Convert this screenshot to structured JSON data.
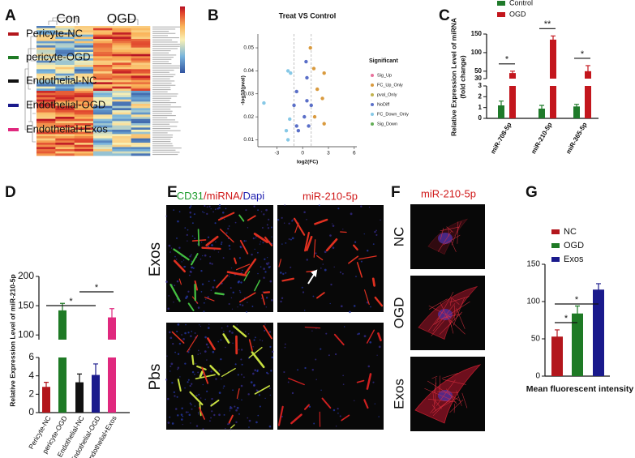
{
  "panel_labels": [
    "A",
    "B",
    "C",
    "D",
    "E",
    "F",
    "G"
  ],
  "chart_data": [
    {
      "type": "heatmap",
      "column_groups": [
        "Con",
        "OGD"
      ]
    },
    {
      "type": "scatter",
      "title": "Treat VS Control",
      "x_label": "log2(FC)",
      "y_label": "-log10(pval)",
      "legend_title": "Significant",
      "xlim": [
        -5.2,
        6.3
      ],
      "ylim": [
        0.007,
        0.056
      ],
      "xticks": [
        -3,
        0,
        3,
        6
      ],
      "yticks": [
        0.01,
        0.02,
        0.03,
        0.04,
        0.05
      ],
      "threshold_lines": [
        -1,
        1
      ],
      "series": [
        {
          "name": "Sig_Up",
          "color": "#e8719c",
          "x": [],
          "values": []
        },
        {
          "name": "FC_Up_Only",
          "color": "#d99a3e",
          "x": [
            0.9,
            1.3,
            2.5,
            1.7,
            2.3,
            1.4,
            2.5
          ],
          "values": [
            0.05,
            0.041,
            0.039,
            0.032,
            0.028,
            0.02,
            0.017
          ]
        },
        {
          "name": "pval_Only",
          "color": "#c2b34f",
          "x": [],
          "values": []
        },
        {
          "name": "NoDiff",
          "color": "#5a6fc8",
          "x": [
            0.4,
            0.5,
            -0.7,
            0.5,
            1.0,
            -1.0,
            0.2,
            -0.7,
            -0.5,
            0.7
          ],
          "values": [
            0.044,
            0.037,
            0.031,
            0.027,
            0.025,
            0.025,
            0.02,
            0.016,
            0.014,
            0.016
          ]
        },
        {
          "name": "FC_Down_Only",
          "color": "#86c8e6",
          "x": [
            -1.7,
            -1.4,
            -4.5,
            -1.5,
            -1.9,
            -1.7
          ],
          "values": [
            0.04,
            0.039,
            0.026,
            0.019,
            0.014,
            0.01
          ]
        },
        {
          "name": "Sig_Down",
          "color": "#62ad55",
          "x": [],
          "values": []
        }
      ]
    },
    {
      "type": "bar",
      "y_label": [
        "Relative Expression Level of miRNA",
        "(fold change)"
      ],
      "categories": [
        "miR-708-5p",
        "miR-210-5p",
        "miR-365-5p"
      ],
      "series": [
        {
          "name": "Control",
          "color": "#1f7a2a",
          "values": [
            1.2,
            0.9,
            1.1
          ],
          "errors": [
            0.4,
            0.3,
            0.2
          ]
        },
        {
          "name": "OGD",
          "color": "#c3161d",
          "values": [
            45,
            135,
            50
          ],
          "errors": [
            5,
            10,
            15
          ]
        }
      ],
      "ylim": [
        0,
        150
      ],
      "y_break": [
        3,
        30
      ],
      "yticks": [
        0,
        1,
        2,
        3,
        30,
        50,
        100,
        150
      ],
      "significance": [
        "*",
        "**",
        "*"
      ]
    },
    {
      "type": "bar",
      "y_label": [
        "Relative Expression Level of miR-210-5p"
      ],
      "categories": [
        "Pericyte-NC",
        "pericyte-OGD",
        "Endothelial-NC",
        "Endothelial-OGD",
        "Endothelial+Exos"
      ],
      "values": [
        2.8,
        142,
        3.3,
        4.1,
        130
      ],
      "errors": [
        0.5,
        12,
        0.9,
        1.2,
        15
      ],
      "colors": [
        "#b3161c",
        "#1e7a25",
        "#111111",
        "#1a1a8c",
        "#e0287e"
      ],
      "ylim": [
        0,
        200
      ],
      "y_break": [
        6,
        92
      ],
      "yticks": [
        0,
        2,
        4,
        6,
        100,
        150,
        200
      ],
      "significance": [
        "*",
        "*"
      ]
    },
    {
      "type": "bar",
      "x_label": "Mean fluorescent intensity",
      "categories": [
        "NC",
        "OGD",
        "Exos"
      ],
      "values": [
        53,
        84,
        116
      ],
      "errors": [
        9,
        10,
        8
      ],
      "colors": [
        "#b3161c",
        "#1e7a25",
        "#1a1a8c"
      ],
      "ylim": [
        0,
        150
      ],
      "yticks": [
        0,
        50,
        100,
        150
      ],
      "significance": [
        "*",
        "*"
      ]
    }
  ],
  "panel_e": {
    "merge_title": [
      "CD31",
      "/miRNA/",
      "Dapi"
    ],
    "single_title": "miR-210-5p",
    "row_labels": [
      "Exos",
      "Pbs"
    ]
  },
  "panel_f": {
    "title": "miR-210-5p",
    "row_labels": [
      "NC",
      "OGD",
      "Exos"
    ]
  }
}
